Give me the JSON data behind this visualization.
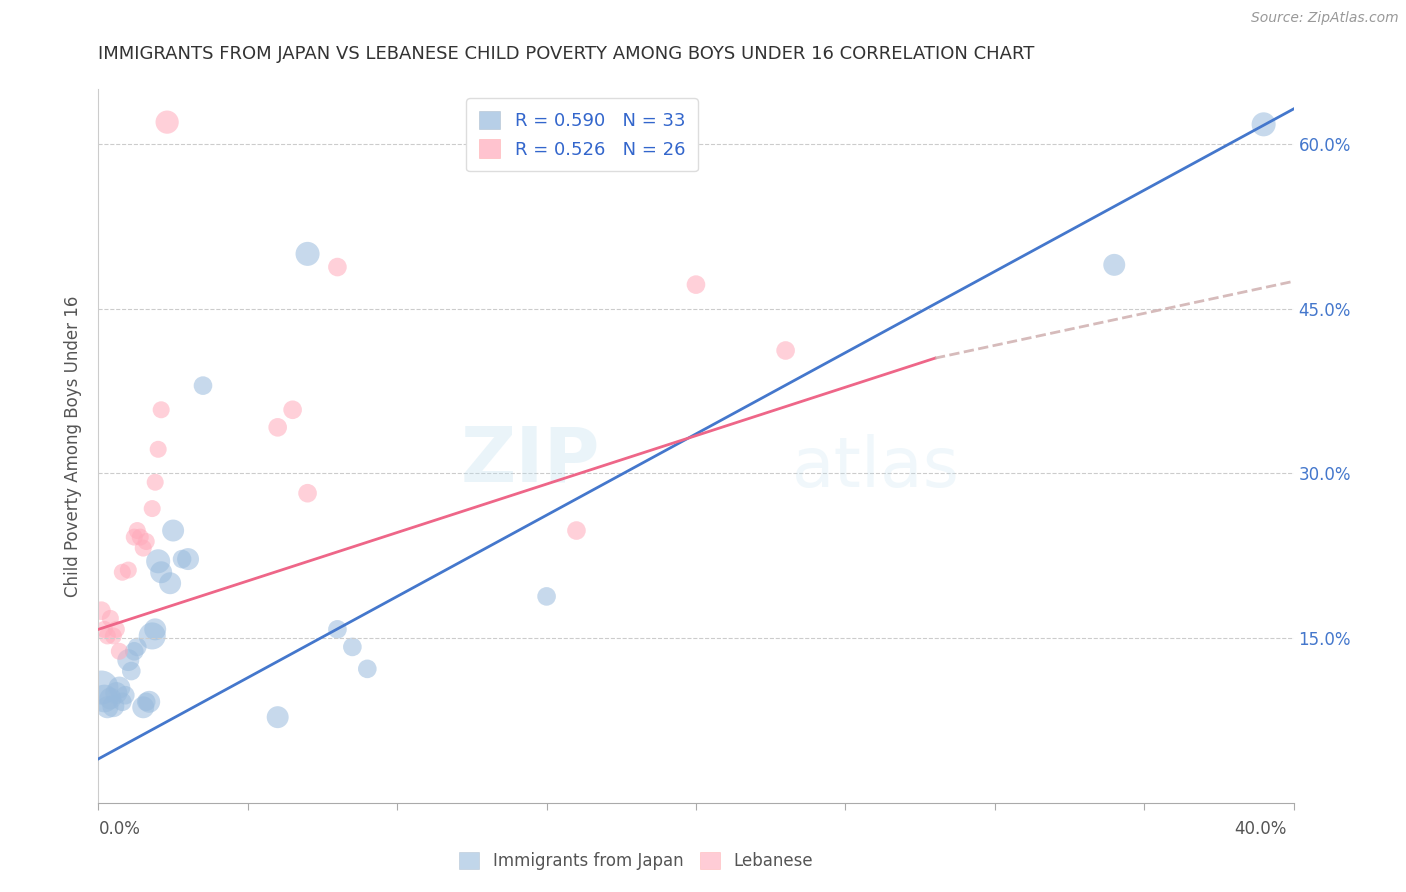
{
  "title": "IMMIGRANTS FROM JAPAN VS LEBANESE CHILD POVERTY AMONG BOYS UNDER 16 CORRELATION CHART",
  "source": "Source: ZipAtlas.com",
  "ylabel": "Child Poverty Among Boys Under 16",
  "ytick_labels": [
    "15.0%",
    "30.0%",
    "45.0%",
    "60.0%"
  ],
  "ytick_values": [
    0.15,
    0.3,
    0.45,
    0.6
  ],
  "xlim": [
    0.0,
    0.4
  ],
  "ylim": [
    0.0,
    0.65
  ],
  "legend_blue_R": "R = 0.590",
  "legend_blue_N": "N = 33",
  "legend_pink_R": "R = 0.526",
  "legend_pink_N": "N = 26",
  "blue_color": "#99BBDD",
  "pink_color": "#FFAABB",
  "blue_line_color": "#4477CC",
  "pink_line_color": "#EE6688",
  "japan_scatter": [
    [
      0.001,
      0.105
    ],
    [
      0.002,
      0.095
    ],
    [
      0.003,
      0.087
    ],
    [
      0.004,
      0.095
    ],
    [
      0.005,
      0.088
    ],
    [
      0.006,
      0.1
    ],
    [
      0.007,
      0.105
    ],
    [
      0.008,
      0.092
    ],
    [
      0.009,
      0.098
    ],
    [
      0.01,
      0.13
    ],
    [
      0.011,
      0.12
    ],
    [
      0.012,
      0.138
    ],
    [
      0.013,
      0.142
    ],
    [
      0.015,
      0.087
    ],
    [
      0.016,
      0.092
    ],
    [
      0.017,
      0.092
    ],
    [
      0.018,
      0.152
    ],
    [
      0.019,
      0.158
    ],
    [
      0.02,
      0.22
    ],
    [
      0.021,
      0.21
    ],
    [
      0.024,
      0.2
    ],
    [
      0.025,
      0.248
    ],
    [
      0.028,
      0.222
    ],
    [
      0.03,
      0.222
    ],
    [
      0.035,
      0.38
    ],
    [
      0.06,
      0.078
    ],
    [
      0.07,
      0.5
    ],
    [
      0.08,
      0.158
    ],
    [
      0.085,
      0.142
    ],
    [
      0.09,
      0.122
    ],
    [
      0.15,
      0.188
    ],
    [
      0.34,
      0.49
    ],
    [
      0.39,
      0.618
    ]
  ],
  "japan_sizes": [
    600,
    400,
    250,
    250,
    250,
    250,
    250,
    180,
    180,
    250,
    180,
    180,
    180,
    250,
    180,
    250,
    380,
    250,
    300,
    250,
    250,
    250,
    180,
    250,
    180,
    250,
    300,
    180,
    180,
    180,
    180,
    250,
    300
  ],
  "lebanese_scatter": [
    [
      0.001,
      0.175
    ],
    [
      0.002,
      0.158
    ],
    [
      0.003,
      0.152
    ],
    [
      0.004,
      0.168
    ],
    [
      0.005,
      0.152
    ],
    [
      0.006,
      0.158
    ],
    [
      0.007,
      0.138
    ],
    [
      0.008,
      0.21
    ],
    [
      0.01,
      0.212
    ],
    [
      0.012,
      0.242
    ],
    [
      0.013,
      0.248
    ],
    [
      0.014,
      0.242
    ],
    [
      0.015,
      0.232
    ],
    [
      0.016,
      0.238
    ],
    [
      0.018,
      0.268
    ],
    [
      0.019,
      0.292
    ],
    [
      0.02,
      0.322
    ],
    [
      0.021,
      0.358
    ],
    [
      0.023,
      0.62
    ],
    [
      0.06,
      0.342
    ],
    [
      0.065,
      0.358
    ],
    [
      0.07,
      0.282
    ],
    [
      0.08,
      0.488
    ],
    [
      0.16,
      0.248
    ],
    [
      0.2,
      0.472
    ],
    [
      0.23,
      0.412
    ]
  ],
  "lebanese_sizes": [
    180,
    150,
    150,
    150,
    150,
    150,
    150,
    150,
    150,
    150,
    150,
    150,
    150,
    150,
    150,
    150,
    150,
    150,
    280,
    180,
    180,
    180,
    180,
    180,
    180,
    180
  ],
  "blue_trendline": [
    [
      0.0,
      0.04
    ],
    [
      0.4,
      0.632
    ]
  ],
  "pink_trendline_solid": [
    [
      0.0,
      0.158
    ],
    [
      0.28,
      0.405
    ]
  ],
  "pink_trendline_dashed": [
    [
      0.28,
      0.405
    ],
    [
      0.4,
      0.475
    ]
  ],
  "watermark_zip": "ZIP",
  "watermark_atlas": "atlas"
}
